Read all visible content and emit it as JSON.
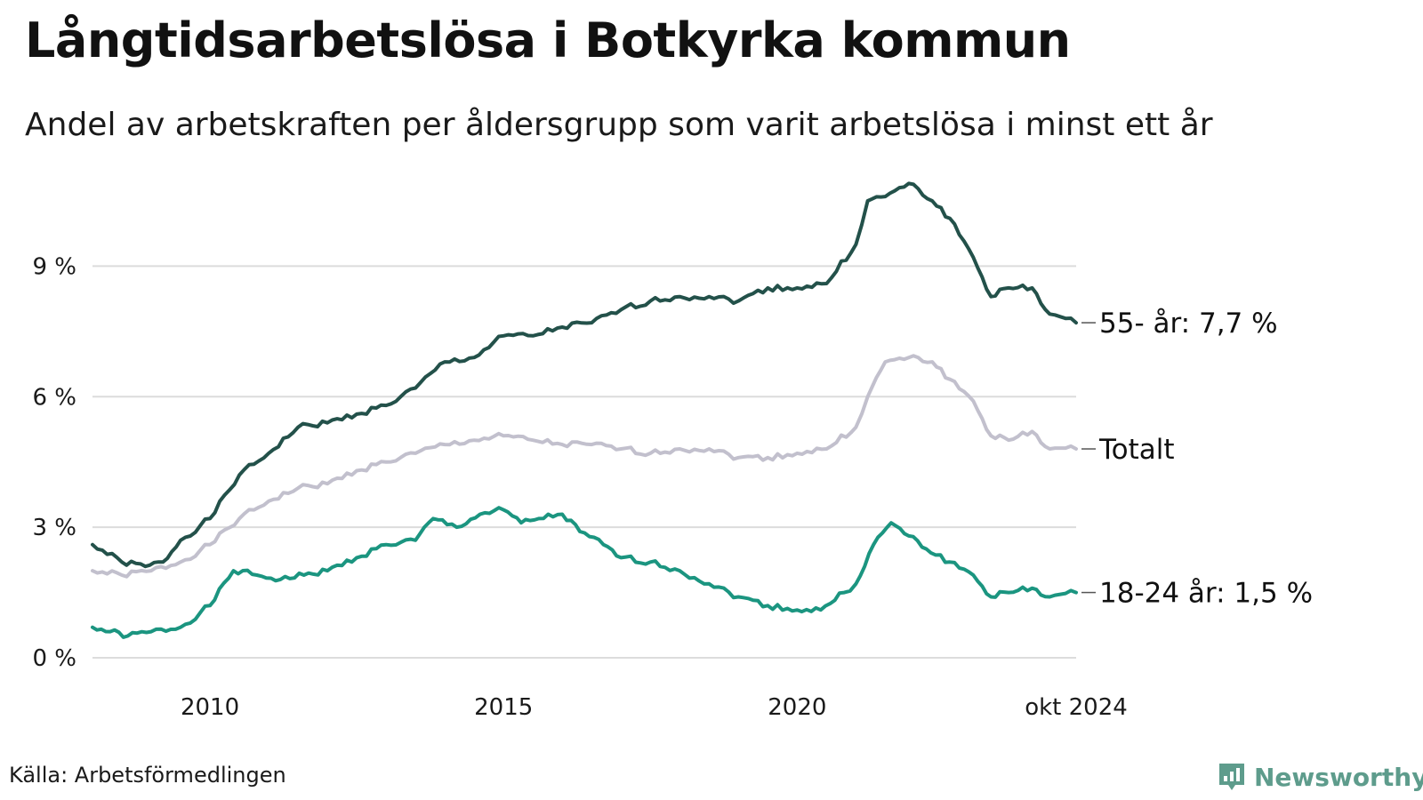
{
  "header": {
    "title": "Långtidsarbetslösa i Botkyrka kommun",
    "subtitle": "Andel av arbetskraften per åldersgrupp som varit arbetslösa i minst ett år"
  },
  "footer": {
    "source": "Källa: Arbetsförmedlingen",
    "brand": "Newsworthy"
  },
  "chart_data": {
    "type": "line",
    "title": "Långtidsarbetslösa i Botkyrka kommun",
    "subtitle": "Andel av arbetskraften per åldersgrupp som varit arbetslösa i minst ett år",
    "xlabel": "",
    "ylabel": "",
    "xlim": [
      2008.0,
      2024.75
    ],
    "ylim": [
      0,
      10.5
    ],
    "grid": true,
    "yticks": [
      {
        "value": 0,
        "label": "0 %"
      },
      {
        "value": 3,
        "label": "3 %"
      },
      {
        "value": 6,
        "label": "6 %"
      },
      {
        "value": 9,
        "label": "9 %"
      }
    ],
    "xticks": [
      {
        "value": 2010,
        "label": "2010"
      },
      {
        "value": 2015,
        "label": "2015"
      },
      {
        "value": 2020,
        "label": "2020"
      },
      {
        "value": 2024.75,
        "label": "okt 2024"
      }
    ],
    "series": [
      {
        "name": "55- år",
        "end_label": "55- år: 7,7 %",
        "color": "#23514a",
        "x": [
          2008.0,
          2008.5,
          2008.9,
          2009.2,
          2009.5,
          2010.0,
          2010.5,
          2011.0,
          2011.5,
          2012.0,
          2012.5,
          2013.0,
          2013.5,
          2014.0,
          2014.5,
          2015.0,
          2015.5,
          2016.0,
          2016.5,
          2017.0,
          2017.5,
          2018.0,
          2018.5,
          2019.0,
          2019.5,
          2020.0,
          2020.5,
          2021.0,
          2021.2,
          2021.5,
          2021.9,
          2022.3,
          2022.6,
          2023.0,
          2023.3,
          2023.6,
          2024.0,
          2024.3,
          2024.75
        ],
        "y": [
          2.6,
          2.2,
          2.1,
          2.2,
          2.7,
          3.2,
          4.2,
          4.7,
          5.3,
          5.4,
          5.6,
          5.8,
          6.2,
          6.8,
          6.9,
          7.4,
          7.4,
          7.6,
          7.7,
          8.0,
          8.2,
          8.3,
          8.3,
          8.2,
          8.5,
          8.5,
          8.6,
          9.5,
          10.5,
          10.6,
          10.9,
          10.5,
          10.1,
          9.2,
          8.3,
          8.5,
          8.5,
          7.9,
          7.7
        ]
      },
      {
        "name": "Totalt",
        "end_label": "Totalt",
        "color": "#c2c0cd",
        "x": [
          2008.0,
          2008.5,
          2009.0,
          2009.5,
          2010.0,
          2010.5,
          2011.0,
          2011.5,
          2012.0,
          2012.5,
          2013.0,
          2013.5,
          2014.0,
          2014.5,
          2015.0,
          2015.5,
          2016.0,
          2016.5,
          2017.0,
          2017.5,
          2018.0,
          2018.5,
          2019.0,
          2019.5,
          2020.0,
          2020.5,
          2021.0,
          2021.2,
          2021.5,
          2021.9,
          2022.3,
          2022.6,
          2023.0,
          2023.3,
          2023.6,
          2024.0,
          2024.3,
          2024.75
        ],
        "y": [
          2.0,
          1.9,
          2.0,
          2.2,
          2.6,
          3.2,
          3.6,
          3.9,
          4.0,
          4.3,
          4.5,
          4.7,
          4.9,
          5.0,
          5.1,
          5.0,
          4.9,
          4.9,
          4.8,
          4.7,
          4.8,
          4.8,
          4.6,
          4.6,
          4.7,
          4.8,
          5.3,
          6.0,
          6.8,
          6.9,
          6.8,
          6.4,
          5.9,
          5.1,
          5.0,
          5.2,
          4.8,
          4.8
        ]
      },
      {
        "name": "18-24 år",
        "end_label": "18-24 år: 1,5 %",
        "color": "#1b9580",
        "x": [
          2008.0,
          2008.3,
          2008.6,
          2009.0,
          2009.5,
          2010.0,
          2010.4,
          2010.8,
          2011.2,
          2011.6,
          2012.0,
          2012.5,
          2013.0,
          2013.5,
          2013.8,
          2014.2,
          2014.6,
          2015.0,
          2015.3,
          2015.6,
          2016.0,
          2016.3,
          2016.7,
          2017.0,
          2017.5,
          2018.0,
          2018.5,
          2019.0,
          2019.5,
          2020.0,
          2020.4,
          2020.8,
          2021.0,
          2021.3,
          2021.6,
          2021.9,
          2022.2,
          2022.6,
          2023.0,
          2023.3,
          2023.6,
          2024.0,
          2024.3,
          2024.75
        ],
        "y": [
          0.7,
          0.6,
          0.5,
          0.6,
          0.7,
          1.2,
          2.0,
          1.9,
          1.8,
          1.9,
          2.0,
          2.3,
          2.6,
          2.7,
          3.2,
          3.0,
          3.3,
          3.4,
          3.1,
          3.2,
          3.3,
          2.9,
          2.6,
          2.3,
          2.2,
          2.0,
          1.7,
          1.4,
          1.2,
          1.1,
          1.1,
          1.5,
          1.7,
          2.6,
          3.1,
          2.8,
          2.5,
          2.2,
          1.9,
          1.4,
          1.5,
          1.6,
          1.4,
          1.5
        ]
      }
    ]
  }
}
